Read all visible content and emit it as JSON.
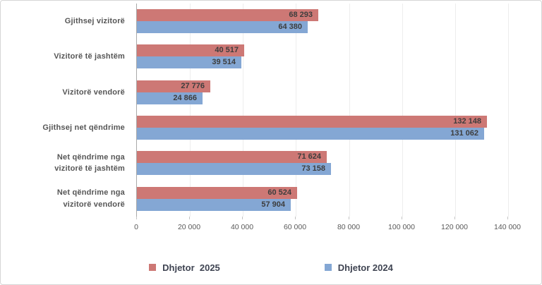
{
  "chart_data": {
    "type": "bar",
    "orientation": "horizontal",
    "categories": [
      "Gjithsej vizitorë",
      "Vizitorë të jashtëm",
      "Vizitorë vendorë",
      "Gjithsej net qëndrime",
      "Net qëndrime nga\nvizitorë të jashtëm",
      "Net qëndrime nga\nvizitorë vendorë"
    ],
    "series": [
      {
        "name": "Dhjetor  2025",
        "color": "#cd7875",
        "values": [
          68293,
          40517,
          27776,
          132148,
          71624,
          60524
        ],
        "value_labels": [
          "68 293",
          "40 517",
          "27 776",
          "132 148",
          "71 624",
          "60 524"
        ]
      },
      {
        "name": "Dhjetor 2024",
        "color": "#84a7d4",
        "values": [
          64380,
          39514,
          24866,
          131062,
          73158,
          57904
        ],
        "value_labels": [
          "64 380",
          "39 514",
          "24 866",
          "131 062",
          "73 158",
          "57 904"
        ]
      }
    ],
    "xlim": [
      0,
      140000
    ],
    "xticks": [
      0,
      20000,
      40000,
      60000,
      80000,
      100000,
      120000,
      140000
    ],
    "xtick_labels": [
      "0",
      "20 000",
      "40 000",
      "60 000",
      "80 000",
      "100 000",
      "120 000",
      "140 000"
    ],
    "grid": true,
    "legend_position": "bottom"
  },
  "legend": {
    "items": [
      {
        "label": "Dhjetor  2025",
        "color": "#cd7875"
      },
      {
        "label": "Dhjetor 2024",
        "color": "#84a7d4"
      }
    ]
  },
  "colors": {
    "value_label": "#3d3d3d",
    "category_label": "#565656",
    "axis_label": "#595959",
    "gridline": "#ededed",
    "axis_line": "#a9a9a9",
    "frame_border": "#d6d6d6"
  }
}
